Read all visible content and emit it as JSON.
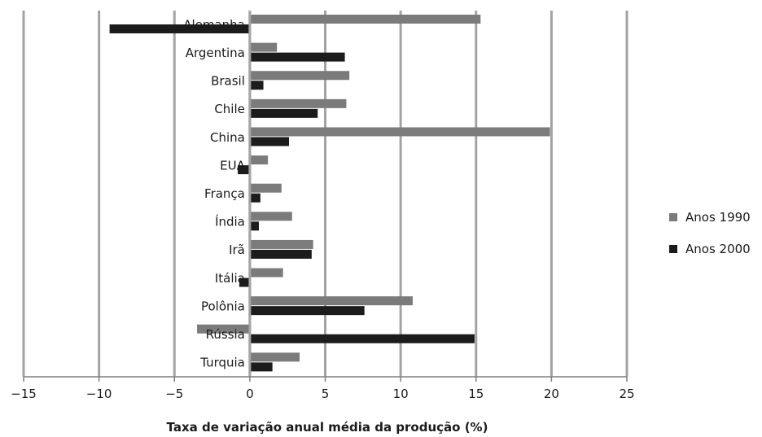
{
  "chart_data": {
    "type": "bar",
    "orientation": "horizontal",
    "categories": [
      "Alemanha",
      "Argentina",
      "Brasil",
      "Chile",
      "China",
      "EUA",
      "França",
      "Índia",
      "Irã",
      "Itália",
      "Polônia",
      "Rússia",
      "Turquia"
    ],
    "series": [
      {
        "name": "Anos 1990",
        "color": "#7b7b7b",
        "values": [
          15.3,
          1.8,
          6.6,
          6.4,
          19.9,
          1.2,
          2.1,
          2.8,
          4.2,
          2.2,
          10.8,
          -3.5,
          3.3
        ]
      },
      {
        "name": "Anos 2000",
        "color": "#1c1c1c",
        "values": [
          -9.3,
          6.3,
          0.9,
          4.5,
          2.6,
          -0.8,
          0.7,
          0.6,
          4.1,
          -0.7,
          7.6,
          14.9,
          1.5
        ]
      }
    ],
    "xlim": [
      -15,
      25
    ],
    "xticks": [
      "−15",
      "−10",
      "−5",
      "0",
      "5",
      "10",
      "15",
      "20",
      "25"
    ],
    "xticks_values": [
      -15,
      -10,
      -5,
      0,
      5,
      10,
      15,
      20,
      25
    ],
    "xlabel": "Taxa de variação anual média da produção (%)",
    "ylabel": "",
    "title": "",
    "grid": "vertical",
    "legend": "right"
  }
}
